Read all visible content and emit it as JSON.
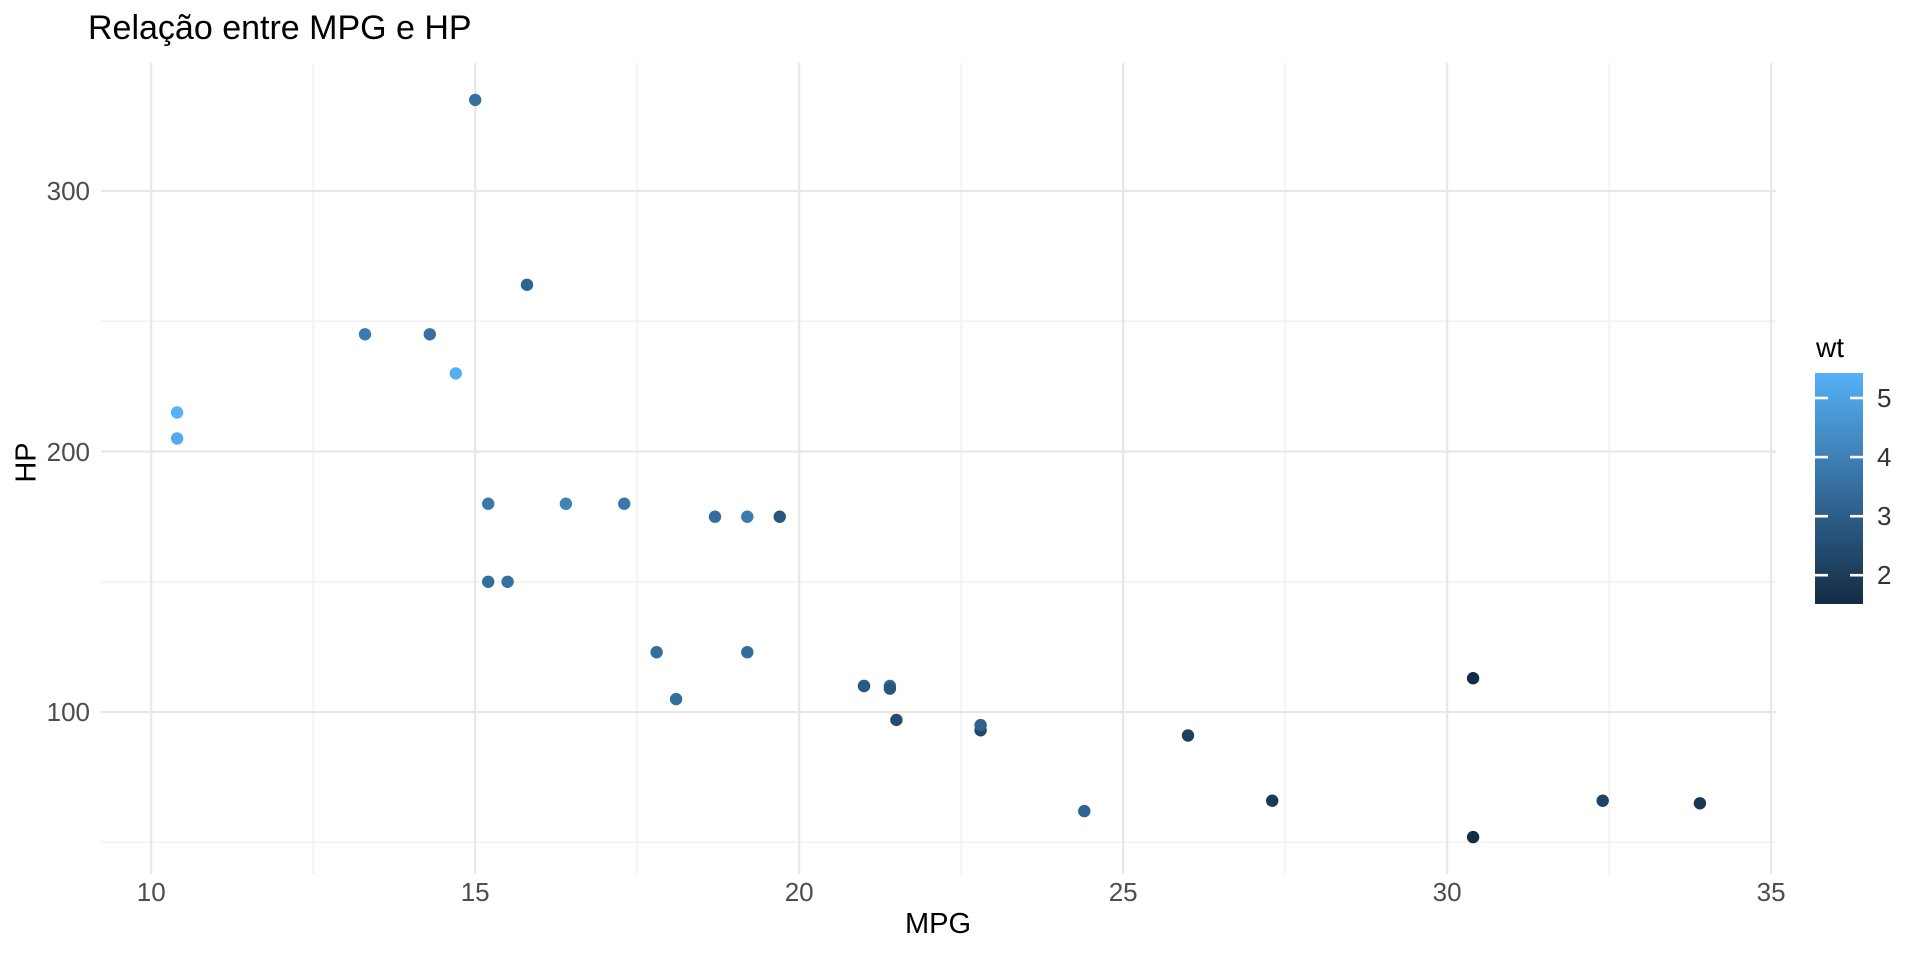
{
  "chart_data": {
    "type": "scatter",
    "title": "Relação entre MPG e HP",
    "xlabel": "MPG",
    "ylabel": "HP",
    "x_ticks": [
      10,
      15,
      20,
      25,
      30,
      35
    ],
    "x_minor_ticks": [
      12.5,
      17.5,
      22.5,
      27.5,
      32.5
    ],
    "y_ticks": [
      100,
      200,
      300
    ],
    "y_minor_ticks": [
      50,
      150,
      250
    ],
    "xlim": [
      9.225,
      35.075
    ],
    "ylim": [
      37.85,
      349.15
    ],
    "grid": "major+minor, light gray on white, no axis lines, no panel border",
    "legend": {
      "title": "wt",
      "position": "right",
      "ticks": [
        5,
        4,
        3,
        2
      ],
      "wt_min": 1.513,
      "wt_max": 5.424,
      "color_low": "#132B43",
      "color_high": "#56B1F7"
    },
    "point_color_encodes": "wt",
    "points": [
      {
        "mpg": 21.0,
        "hp": 110,
        "wt": 2.62
      },
      {
        "mpg": 21.0,
        "hp": 110,
        "wt": 2.875
      },
      {
        "mpg": 22.8,
        "hp": 93,
        "wt": 2.32
      },
      {
        "mpg": 21.4,
        "hp": 110,
        "wt": 3.215
      },
      {
        "mpg": 18.7,
        "hp": 175,
        "wt": 3.44
      },
      {
        "mpg": 18.1,
        "hp": 105,
        "wt": 3.46
      },
      {
        "mpg": 14.3,
        "hp": 245,
        "wt": 3.57
      },
      {
        "mpg": 24.4,
        "hp": 62,
        "wt": 3.19
      },
      {
        "mpg": 22.8,
        "hp": 95,
        "wt": 3.15
      },
      {
        "mpg": 19.2,
        "hp": 123,
        "wt": 3.44
      },
      {
        "mpg": 17.8,
        "hp": 123,
        "wt": 3.44
      },
      {
        "mpg": 16.4,
        "hp": 180,
        "wt": 4.07
      },
      {
        "mpg": 17.3,
        "hp": 180,
        "wt": 3.73
      },
      {
        "mpg": 15.2,
        "hp": 180,
        "wt": 3.78
      },
      {
        "mpg": 10.4,
        "hp": 205,
        "wt": 5.25
      },
      {
        "mpg": 10.4,
        "hp": 215,
        "wt": 5.424
      },
      {
        "mpg": 14.7,
        "hp": 230,
        "wt": 5.345
      },
      {
        "mpg": 32.4,
        "hp": 66,
        "wt": 2.2
      },
      {
        "mpg": 30.4,
        "hp": 52,
        "wt": 1.615
      },
      {
        "mpg": 33.9,
        "hp": 65,
        "wt": 1.835
      },
      {
        "mpg": 21.5,
        "hp": 97,
        "wt": 2.465
      },
      {
        "mpg": 15.5,
        "hp": 150,
        "wt": 3.52
      },
      {
        "mpg": 15.2,
        "hp": 150,
        "wt": 3.435
      },
      {
        "mpg": 13.3,
        "hp": 245,
        "wt": 3.84
      },
      {
        "mpg": 19.2,
        "hp": 175,
        "wt": 3.845
      },
      {
        "mpg": 27.3,
        "hp": 66,
        "wt": 1.935
      },
      {
        "mpg": 26.0,
        "hp": 91,
        "wt": 2.14
      },
      {
        "mpg": 30.4,
        "hp": 113,
        "wt": 1.513
      },
      {
        "mpg": 15.8,
        "hp": 264,
        "wt": 3.17
      },
      {
        "mpg": 19.7,
        "hp": 175,
        "wt": 2.77
      },
      {
        "mpg": 15.0,
        "hp": 335,
        "wt": 3.57
      },
      {
        "mpg": 21.4,
        "hp": 109,
        "wt": 2.78
      }
    ]
  }
}
